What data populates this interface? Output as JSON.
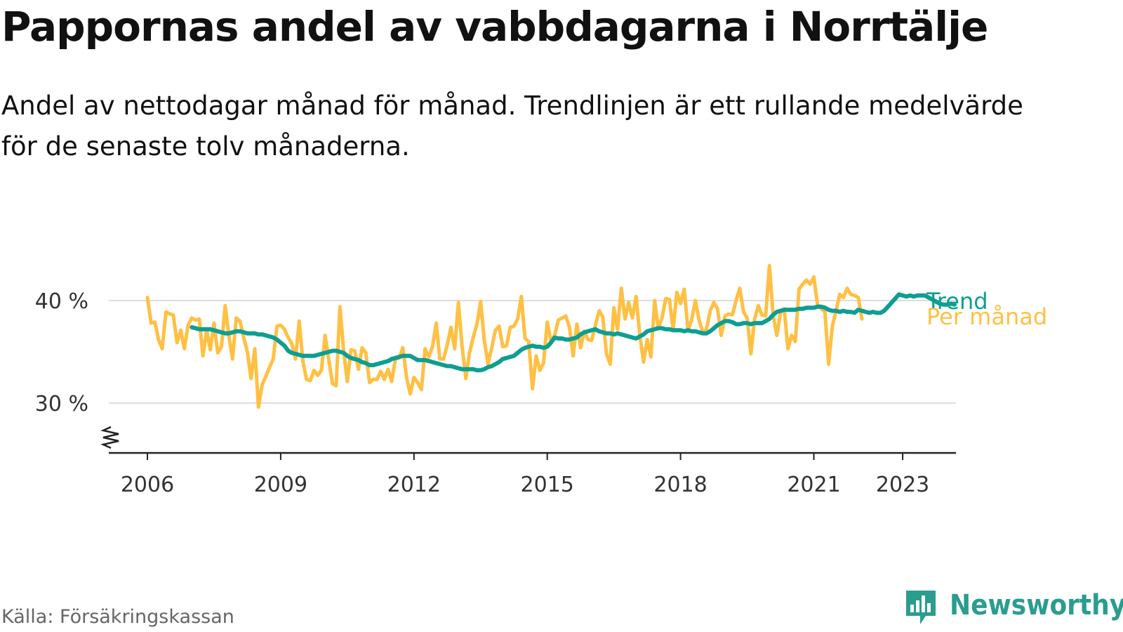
{
  "chart_data": {
    "type": "line",
    "title": "Pappornas andel av vabbdagarna i Norrtälje",
    "subtitle": "Andel av nettodagar månad för månad. Trendlinjen är ett rullande medelvärde för de senaste tolv månaderna.",
    "xlabel": "",
    "ylabel": "",
    "x_ticks": [
      "2006",
      "2009",
      "2012",
      "2015",
      "2018",
      "2021",
      "2023"
    ],
    "y_ticks": [
      "30 %",
      "40 %"
    ],
    "ylim": [
      25,
      43
    ],
    "grid": true,
    "legend": "inline-end",
    "series": [
      {
        "name": "Trend",
        "color": "#0e9e91",
        "start_year": 2007,
        "start_month": 1,
        "values": [
          37.4,
          37.3,
          37.2,
          37.2,
          37.2,
          37.2,
          37.1,
          37.0,
          36.9,
          36.8,
          36.8,
          36.9,
          37.0,
          37.0,
          36.9,
          36.8,
          36.8,
          36.8,
          36.7,
          36.7,
          36.6,
          36.5,
          36.4,
          36.2,
          35.9,
          35.6,
          35.1,
          34.9,
          34.8,
          34.7,
          34.6,
          34.6,
          34.6,
          34.6,
          34.7,
          34.8,
          34.9,
          35.0,
          35.1,
          35.1,
          35.0,
          34.9,
          34.6,
          34.4,
          34.3,
          34.2,
          34.0,
          33.9,
          33.7,
          33.7,
          33.8,
          33.9,
          34.0,
          34.1,
          34.3,
          34.4,
          34.5,
          34.6,
          34.6,
          34.6,
          34.4,
          34.2,
          34.2,
          34.2,
          34.1,
          34.0,
          33.9,
          33.8,
          33.7,
          33.6,
          33.6,
          33.5,
          33.4,
          33.3,
          33.3,
          33.3,
          33.3,
          33.2,
          33.2,
          33.3,
          33.5,
          33.6,
          33.8,
          34.0,
          34.3,
          34.4,
          34.5,
          34.6,
          34.9,
          35.2,
          35.4,
          35.5,
          35.6,
          35.5,
          35.5,
          35.4,
          35.5,
          35.9,
          36.4,
          36.3,
          36.3,
          36.2,
          36.2,
          36.3,
          36.4,
          36.7,
          36.9,
          37.0,
          37.1,
          37.2,
          37.0,
          36.9,
          36.8,
          36.8,
          36.7,
          36.8,
          36.7,
          36.6,
          36.5,
          36.4,
          36.3,
          36.5,
          36.7,
          37.0,
          37.1,
          37.2,
          37.3,
          37.3,
          37.2,
          37.2,
          37.1,
          37.1,
          37.1,
          37.0,
          37.1,
          37.0,
          37.0,
          36.9,
          36.8,
          36.8,
          37.0,
          37.3,
          37.6,
          37.8,
          38.0,
          38.0,
          37.9,
          37.7,
          37.7,
          37.8,
          37.8,
          37.7,
          37.8,
          37.8,
          37.8,
          38.0,
          38.2,
          38.6,
          38.9,
          39.0,
          39.1,
          39.1,
          39.1,
          39.1,
          39.2,
          39.2,
          39.3,
          39.3,
          39.3,
          39.4,
          39.4,
          39.3,
          39.1,
          39.0,
          39.0,
          38.9,
          39.0,
          38.9,
          38.9,
          38.8,
          39.1,
          39.0,
          38.9,
          38.8,
          38.9,
          38.8,
          38.8,
          39.0,
          39.4,
          39.8,
          40.2,
          40.6,
          40.5,
          40.4,
          40.5,
          40.4,
          40.5,
          40.5,
          40.5,
          40.3,
          40.1,
          39.9,
          39.7,
          39.6,
          39.6,
          39.7,
          39.6
        ]
      },
      {
        "name": "Per månad",
        "color": "#ffc044",
        "start_year": 2006,
        "start_month": 1,
        "values": [
          40.3,
          37.8,
          37.9,
          36.2,
          35.3,
          38.9,
          38.7,
          38.6,
          35.9,
          37.1,
          35.3,
          37.6,
          38.3,
          38.1,
          38.2,
          34.6,
          37.1,
          35.2,
          37.8,
          34.9,
          35.5,
          39.5,
          36.6,
          34.3,
          38.3,
          38.0,
          36.4,
          35.0,
          32.4,
          35.3,
          29.6,
          31.8,
          32.6,
          33.5,
          34.3,
          37.5,
          37.6,
          37.2,
          36.4,
          35.8,
          34.3,
          38.0,
          34.1,
          32.3,
          32.2,
          33.2,
          32.7,
          33.2,
          36.6,
          34.2,
          31.9,
          31.7,
          39.4,
          35.1,
          32.1,
          35.2,
          35.1,
          33.3,
          35.4,
          34.9,
          32.0,
          32.3,
          32.3,
          33.1,
          32.3,
          33.3,
          32.1,
          34.3,
          34.4,
          35.4,
          32.5,
          30.9,
          32.5,
          32.0,
          31.3,
          35.3,
          34.5,
          35.5,
          37.8,
          34.3,
          34.3,
          35.7,
          37.4,
          35.3,
          39.8,
          35.5,
          32.4,
          34.9,
          36.4,
          37.7,
          39.9,
          36.1,
          33.8,
          35.4,
          37.1,
          37.5,
          35.5,
          35.6,
          37.4,
          37.5,
          38.2,
          40.4,
          36.3,
          36.0,
          31.4,
          34.6,
          33.2,
          33.9,
          37.9,
          36.0,
          36.6,
          38.1,
          38.3,
          38.5,
          37.4,
          34.6,
          37.7,
          35.4,
          37.0,
          36.2,
          36.1,
          37.6,
          39.0,
          38.4,
          34.8,
          33.8,
          39.3,
          37.2,
          41.2,
          38.2,
          39.8,
          38.3,
          40.4,
          36.6,
          34.0,
          36.2,
          34.5,
          40.0,
          37.3,
          38.3,
          40.2,
          40.1,
          37.1,
          40.8,
          39.7,
          41.1,
          37.1,
          38.1,
          40.0,
          38.1,
          36.9,
          37.2,
          39.0,
          39.8,
          39.2,
          36.6,
          38.5,
          38.7,
          38.6,
          40.0,
          41.2,
          38.9,
          38.3,
          34.8,
          38.2,
          39.5,
          38.6,
          38.5,
          43.4,
          38.6,
          36.6,
          38.8,
          39.2,
          35.3,
          36.6,
          36.0,
          41.1,
          41.6,
          42.0,
          41.6,
          42.3,
          39.6,
          39.2,
          38.9,
          33.8,
          37.5,
          39.0,
          40.6,
          40.3,
          41.2,
          40.6,
          40.5,
          40.3,
          38.2
        ]
      }
    ]
  },
  "source": "Källa: Försäkringskassan",
  "brand": {
    "name": "Newsworthy",
    "color": "#2a9d8f",
    "icon": "newsworthy-logo-icon"
  }
}
